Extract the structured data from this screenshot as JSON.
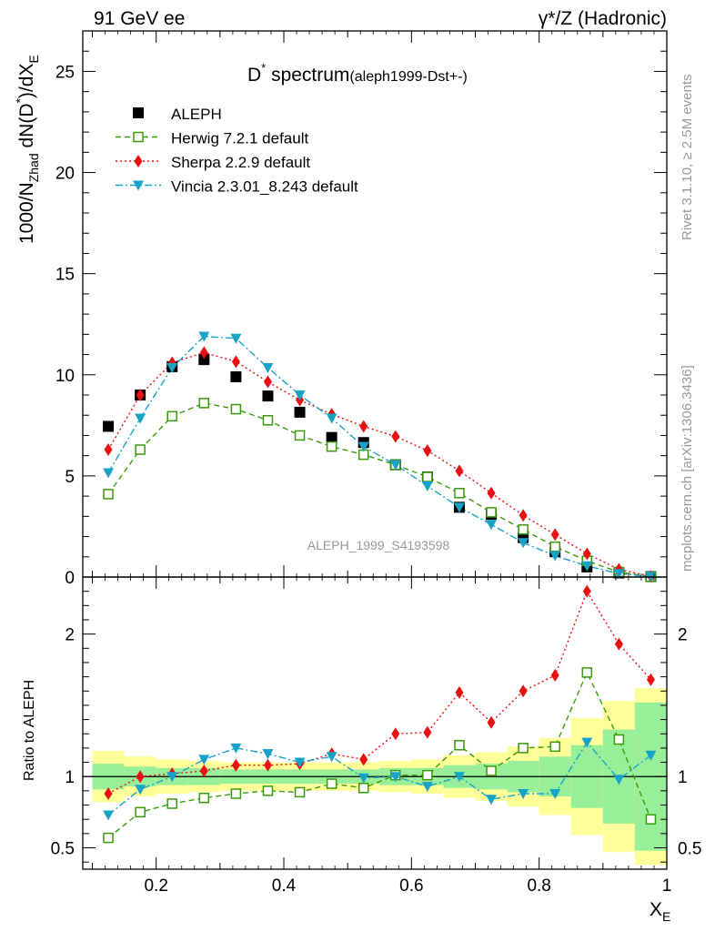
{
  "header": {
    "left": "91 GeV ee",
    "right": "γ*/Z (Hadronic)"
  },
  "side_labels": {
    "rivet": "Rivet 3.1.10, ≥ 2.5M events",
    "mcplots": "mcplots.cern.ch [arXiv:1306.3436]"
  },
  "watermark": "ALEPH_1999_S4193598",
  "colors": {
    "aleph": "#000000",
    "herwig": "#3a9a0a",
    "sherpa": "#e81010",
    "vincia": "#17a3c8",
    "band_yellow": "#ffff99",
    "band_green": "#99ee99"
  },
  "chart_data": [
    {
      "type": "scatter",
      "title_main": "D",
      "title_sup": "*",
      "title_rest": " spectrum",
      "title_tag": "(aleph1999-Dst+-)",
      "ylabel": "1000/N_Zhad dN(D*)/dX_E",
      "ylim": [
        0,
        27
      ],
      "xlim": [
        0.085,
        1.0
      ],
      "yticks": [
        "0",
        "5",
        "10",
        "15",
        "20",
        "25"
      ],
      "x": [
        0.125,
        0.175,
        0.225,
        0.275,
        0.325,
        0.375,
        0.425,
        0.475,
        0.525,
        0.575,
        0.625,
        0.675,
        0.725,
        0.775,
        0.825,
        0.875,
        0.925,
        0.975
      ],
      "series": [
        {
          "name": "ALEPH",
          "key": "aleph",
          "marker": "square",
          "values": [
            7.45,
            9.0,
            10.4,
            10.75,
            9.9,
            8.95,
            8.15,
            6.9,
            6.65,
            5.55,
            4.95,
            3.45,
            3.1,
            1.95,
            1.25,
            0.5,
            0.2,
            0.02
          ]
        },
        {
          "name": "Herwig 7.2.1 default",
          "key": "herwig",
          "marker": "open-square",
          "values": [
            4.1,
            6.3,
            7.95,
            8.6,
            8.3,
            7.75,
            7.0,
            6.45,
            6.05,
            5.55,
            4.95,
            4.15,
            3.2,
            2.35,
            1.5,
            0.8,
            0.25,
            0.014
          ]
        },
        {
          "name": "Sherpa 2.2.9 default",
          "key": "sherpa",
          "marker": "diamond",
          "values": [
            6.3,
            9.0,
            10.6,
            11.1,
            10.65,
            9.65,
            8.75,
            8.05,
            7.45,
            6.95,
            6.25,
            5.25,
            4.15,
            3.05,
            2.1,
            1.15,
            0.38,
            0.035
          ]
        },
        {
          "name": "Vincia 2.3.01_8.243 default",
          "key": "vincia",
          "marker": "triangle-down",
          "values": [
            5.15,
            7.85,
            10.35,
            11.9,
            11.8,
            10.35,
            9.0,
            7.85,
            6.45,
            5.55,
            4.5,
            3.45,
            2.6,
            1.7,
            1.05,
            0.55,
            0.17,
            0.02
          ]
        }
      ]
    },
    {
      "type": "line",
      "ylabel": "Ratio to ALEPH",
      "xlabel": "X_E",
      "ylim": [
        0.35,
        2.4
      ],
      "xlim": [
        0.085,
        1.0
      ],
      "yticks": [
        "0.5",
        "1",
        "2"
      ],
      "xticks": [
        "0.2",
        "0.4",
        "0.6",
        "0.8",
        "1"
      ],
      "x": [
        0.125,
        0.175,
        0.225,
        0.275,
        0.325,
        0.375,
        0.425,
        0.475,
        0.525,
        0.575,
        0.625,
        0.675,
        0.725,
        0.775,
        0.825,
        0.875,
        0.925,
        0.975
      ],
      "band_green": [
        0.09,
        0.07,
        0.06,
        0.06,
        0.05,
        0.05,
        0.05,
        0.05,
        0.05,
        0.06,
        0.06,
        0.08,
        0.09,
        0.11,
        0.14,
        0.22,
        0.33,
        0.52
      ],
      "band_yellow": [
        0.18,
        0.14,
        0.12,
        0.11,
        0.1,
        0.1,
        0.1,
        0.1,
        0.1,
        0.11,
        0.12,
        0.15,
        0.17,
        0.21,
        0.27,
        0.41,
        0.53,
        0.62
      ],
      "series": [
        {
          "name": "Herwig 7.2.1 default",
          "key": "herwig",
          "values": [
            0.57,
            0.75,
            0.81,
            0.85,
            0.88,
            0.9,
            0.89,
            0.95,
            0.92,
            1.01,
            1.01,
            1.22,
            1.04,
            1.2,
            1.21,
            1.73,
            1.26,
            0.7
          ]
        },
        {
          "name": "Sherpa 2.2.9 default",
          "key": "sherpa",
          "values": [
            0.88,
            1.0,
            1.02,
            1.04,
            1.08,
            1.08,
            1.09,
            1.16,
            1.12,
            1.3,
            1.31,
            1.59,
            1.38,
            1.6,
            1.71,
            2.3,
            1.93,
            1.68
          ]
        },
        {
          "name": "Vincia 2.3.01_8.243 default",
          "key": "vincia",
          "values": [
            0.73,
            0.91,
            1.0,
            1.12,
            1.2,
            1.16,
            1.1,
            1.14,
            0.99,
            1.0,
            0.93,
            1.0,
            0.84,
            0.88,
            0.88,
            1.24,
            0.98,
            1.15
          ]
        }
      ]
    }
  ]
}
